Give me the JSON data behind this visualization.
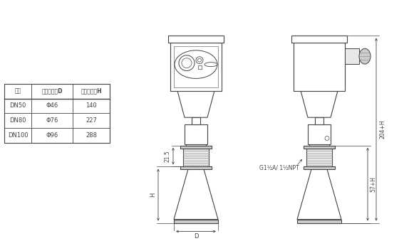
{
  "bg_color": "#ffffff",
  "lc": "#444444",
  "gray_fill": "#e8e8e8",
  "gray_med": "#cccccc",
  "gray_dark": "#aaaaaa",
  "table_header": [
    "法兰",
    "喇叭口直径D",
    "喇叭口高度H"
  ],
  "table_rows": [
    [
      "DN50",
      "Φ46",
      "140"
    ],
    [
      "DN80",
      "Φ76",
      "227"
    ],
    [
      "DN100",
      "Φ96",
      "288"
    ]
  ],
  "dim_215": "21.5",
  "dim_H": "H",
  "dim_D": "D",
  "dim_204H": "204+H",
  "dim_57H": "57+H",
  "dim_thread": "G1½A/ 1½NPT"
}
